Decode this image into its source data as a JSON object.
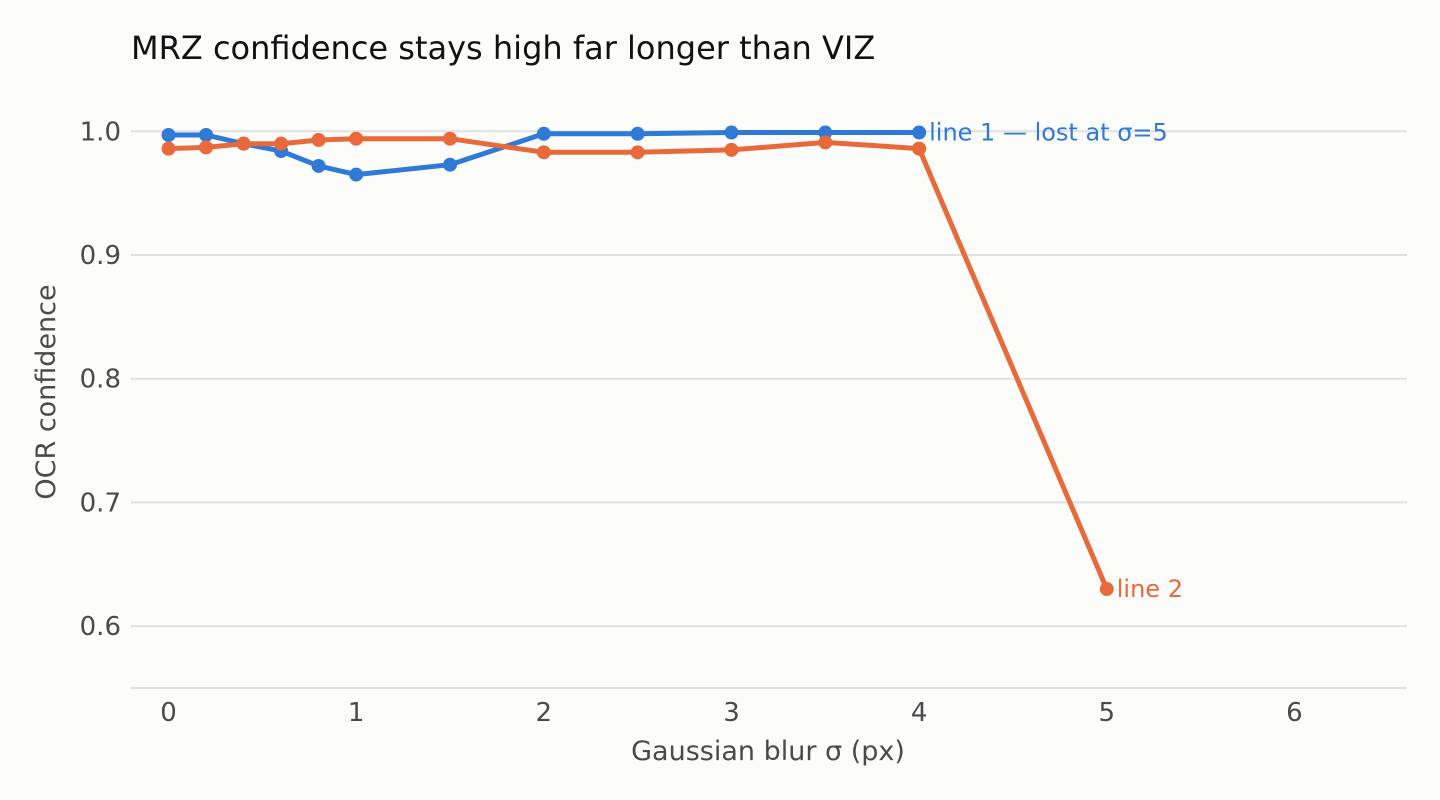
{
  "chart_data": {
    "type": "line",
    "title": "MRZ confidence stays high far longer than VIZ",
    "xlabel": "Gaussian blur σ (px)",
    "ylabel": "OCR confidence",
    "xlim": [
      -0.2,
      6.6
    ],
    "ylim": [
      0.55,
      1.035
    ],
    "x_ticks": [
      0,
      1,
      2,
      3,
      4,
      5,
      6
    ],
    "y_ticks": [
      0.6,
      0.7,
      0.8,
      0.9,
      1.0
    ],
    "grid": true,
    "legend": "none (direct labels at line ends)",
    "series": [
      {
        "name": "line 1",
        "end_label": "line 1 — lost at σ=5",
        "color": "#2f7ad6",
        "points": [
          [
            0,
            0.997
          ],
          [
            0.2,
            0.997
          ],
          [
            0.4,
            0.99
          ],
          [
            0.6,
            0.984
          ],
          [
            0.8,
            0.972
          ],
          [
            1.0,
            0.965
          ],
          [
            1.5,
            0.973
          ],
          [
            2.0,
            0.998
          ],
          [
            2.5,
            0.998
          ],
          [
            3.0,
            0.999
          ],
          [
            3.5,
            0.999
          ],
          [
            4.0,
            0.999
          ]
        ]
      },
      {
        "name": "line 2",
        "end_label": "line 2",
        "color": "#e8693a",
        "points": [
          [
            0,
            0.986
          ],
          [
            0.2,
            0.987
          ],
          [
            0.4,
            0.99
          ],
          [
            0.6,
            0.99
          ],
          [
            0.8,
            0.993
          ],
          [
            1.0,
            0.994
          ],
          [
            1.5,
            0.994
          ],
          [
            2.0,
            0.983
          ],
          [
            2.5,
            0.983
          ],
          [
            3.0,
            0.985
          ],
          [
            3.5,
            0.991
          ],
          [
            4.0,
            0.986
          ],
          [
            5.0,
            0.63
          ]
        ]
      }
    ]
  }
}
